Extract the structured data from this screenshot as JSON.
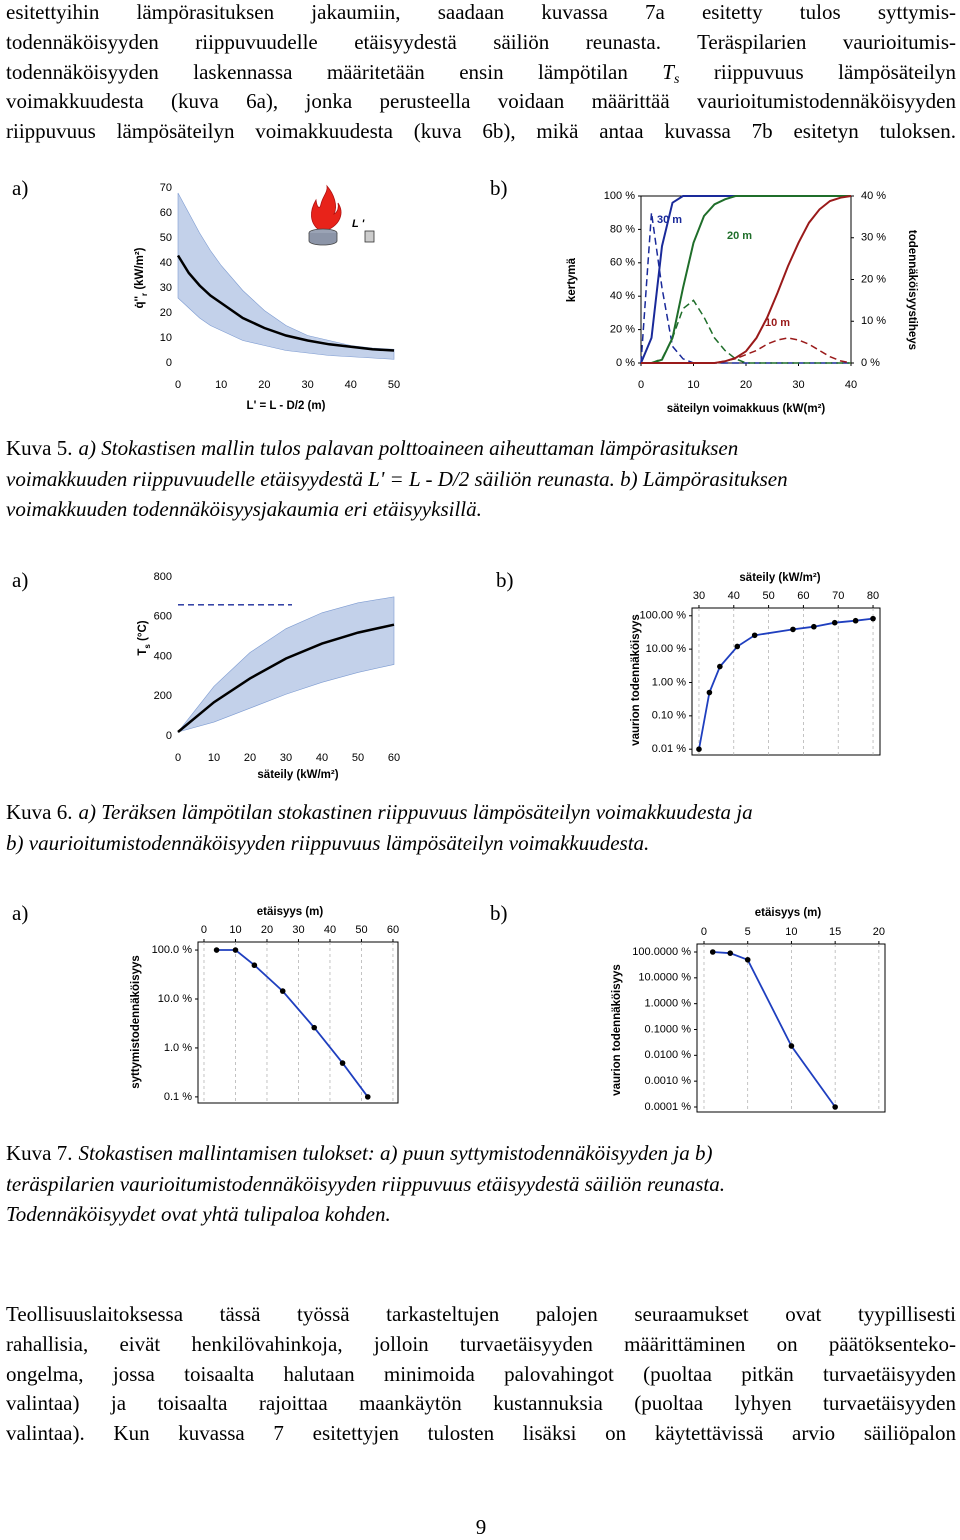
{
  "paragraph_top": {
    "lines": [
      "esitettyihin lämpörasituksen jakaumiin, saadaan kuvassa 7a esitetty tulos syttymis-",
      "todennäköisyyden riippuvuudelle etäisyydestä säiliön reunasta. Teräspilarien vaurioitumis-",
      [
        "todennäköisyyden laskennassa määritetään ensin lämpötilan ",
        "T",
        "s",
        " riippuvuus lämpösäteilyn"
      ],
      "voimakkuudesta (kuva 6a), jonka perusteella voidaan määrittää vaurioitumistodennäköisyyden",
      "riippuvuus lämpösäteilyn voimakkuudesta (kuva 6b), mikä antaa kuvassa 7b esitetyn tuloksen."
    ]
  },
  "figures": [
    {
      "panels": [
        {
          "letter": "a)",
          "chart": {
            "type": "line",
            "annotation": "L '",
            "x_label": "L' = L - D/2 (m)",
            "y_label": [
              "q̇''",
              "r",
              " (kW/m²)"
            ],
            "xlim": [
              0,
              50
            ],
            "xticks": [
              0,
              10,
              20,
              30,
              40,
              50
            ],
            "ylim": [
              0,
              70
            ],
            "yticks": [
              0,
              10,
              20,
              30,
              40,
              50,
              60,
              70
            ],
            "x": [
              0,
              2.5,
              5,
              7.5,
              10,
              15,
              20,
              25,
              30,
              35,
              40,
              45,
              50
            ],
            "band": {
              "color": "#b8c9e6",
              "upper": [
                68,
                60,
                52,
                45,
                39,
                29,
                21,
                15,
                11,
                9,
                7,
                6,
                5.5
              ],
              "lower": [
                26,
                22,
                18,
                15,
                13,
                9,
                7,
                5,
                4,
                3,
                2.5,
                2,
                1.5
              ]
            },
            "series": [
              {
                "color": "#000000",
                "width": 2.5,
                "values": [
                  43,
                  36,
                  31,
                  27,
                  24,
                  18,
                  14,
                  11,
                  9,
                  7.5,
                  6.5,
                  5.5,
                  5
                ]
              }
            ]
          }
        },
        {
          "letter": "b)",
          "chart": {
            "type": "line",
            "frame": true,
            "x_label": "säteilyn voimakkuus (kW(m²)",
            "y_label": "kertymä",
            "y2_label": "todennäköisyystiheys",
            "xlim": [
              0,
              40
            ],
            "xticks": [
              0,
              10,
              20,
              30,
              40
            ],
            "ylim": [
              0,
              100
            ],
            "yticks": [
              {
                "value": 0,
                "label": "0 %"
              },
              {
                "value": 20,
                "label": "20 %"
              },
              {
                "value": 40,
                "label": "40 %"
              },
              {
                "value": 60,
                "label": "60 %"
              },
              {
                "value": 80,
                "label": "80 %"
              },
              {
                "value": 100,
                "label": "100 %"
              }
            ],
            "y2lim": [
              0,
              40
            ],
            "y2ticks": [
              {
                "value": 0,
                "label": "0 %"
              },
              {
                "value": 10,
                "label": "10 %"
              },
              {
                "value": 20,
                "label": "20 %"
              },
              {
                "value": 30,
                "label": "30 %"
              },
              {
                "value": 40,
                "label": "40 %"
              }
            ],
            "x": [
              0,
              2,
              4,
              6,
              8,
              10,
              12,
              14,
              16,
              18,
              20,
              22,
              24,
              26,
              28,
              30,
              32,
              34,
              36,
              38,
              40
            ],
            "series": [
              {
                "name": "30 m",
                "color": "#1a2a9a",
                "width": 2,
                "values": [
                  0,
                  15,
                  70,
                  96,
                  100,
                  100,
                  100,
                  100,
                  100,
                  100,
                  100,
                  100,
                  100,
                  100,
                  100,
                  100,
                  100,
                  100,
                  100,
                  100,
                  100
                ]
              },
              {
                "color": "#1a2a9a",
                "dash": true,
                "axis": "y2",
                "values": [
                  0,
                  36,
                  18,
                  4,
                  1,
                  0,
                  0,
                  0,
                  0,
                  0,
                  0,
                  0,
                  0,
                  0,
                  0,
                  0,
                  0,
                  0,
                  0,
                  0,
                  0
                ]
              },
              {
                "name": "20 m",
                "color": "#1f6e2a",
                "width": 2,
                "values": [
                  0,
                  0,
                  2,
                  15,
                  45,
                  72,
                  88,
                  95,
                  98,
                  100,
                  100,
                  100,
                  100,
                  100,
                  100,
                  100,
                  100,
                  100,
                  100,
                  100,
                  100
                ]
              },
              {
                "color": "#1f6e2a",
                "dash": true,
                "axis": "y2",
                "values": [
                  0,
                  0,
                  1,
                  6,
                  13,
                  15,
                  11,
                  6,
                  3,
                  1,
                  0,
                  0,
                  0,
                  0,
                  0,
                  0,
                  0,
                  0,
                  0,
                  0,
                  0
                ]
              },
              {
                "name": "10 m",
                "color": "#9a1a1a",
                "width": 2,
                "values": [
                  0,
                  0,
                  0,
                  0,
                  0,
                  0,
                  0,
                  0,
                  1,
                  3,
                  7,
                  15,
                  27,
                  42,
                  58,
                  72,
                  84,
                  92,
                  97,
                  99,
                  100
                ]
              },
              {
                "color": "#9a1a1a",
                "dash": true,
                "axis": "y2",
                "values": [
                  0,
                  0,
                  0,
                  0,
                  0,
                  0,
                  0,
                  0,
                  0.5,
                  1,
                  2,
                  3,
                  4.5,
                  5.5,
                  6,
                  5.5,
                  4.5,
                  3,
                  1.5,
                  0.5,
                  0
                ]
              }
            ]
          }
        }
      ],
      "caption": {
        "label": "Kuva 5.",
        "lines": [
          "a) Stokastisen mallin tulos palavan polttoaineen aiheuttaman lämpörasituksen",
          "voimakkuuden riippuvuudelle etäisyydestä L' = L - D/2 säiliön reunasta. b) Lämpörasituksen",
          "voimakkuuden todennäköisyysjakaumia eri etäisyyksillä."
        ]
      }
    },
    {
      "panels": [
        {
          "letter": "a)",
          "chart": {
            "type": "line",
            "x_label": "säteily (kW/m²)",
            "y_label": [
              "T",
              "s",
              " (°C)"
            ],
            "xlim": [
              0,
              60
            ],
            "xticks": [
              0,
              10,
              20,
              30,
              40,
              50,
              60
            ],
            "ylim": [
              0,
              800
            ],
            "yticks": [
              0,
              200,
              400,
              600,
              800
            ],
            "x": [
              0,
              10,
              20,
              30,
              40,
              50,
              60
            ],
            "threshold": 660,
            "band": {
              "color": "#b8c9e6",
              "upper": [
                20,
                250,
                420,
                540,
                620,
                670,
                700
              ],
              "lower": [
                20,
                70,
                140,
                210,
                270,
                320,
                360
              ]
            },
            "series": [
              {
                "color": "#000000",
                "width": 2.5,
                "values": [
                  20,
                  170,
                  290,
                  390,
                  465,
                  520,
                  560
                ]
              }
            ]
          }
        },
        {
          "letter": "b)",
          "chart": {
            "type": "line",
            "frame": true,
            "grid": true,
            "x_axis": "top",
            "log_y": true,
            "x_label": "säteily (kW/m²)",
            "y_label": "vaurion todennäköisyys",
            "xlim": [
              28,
              82
            ],
            "xticks": [
              30,
              40,
              50,
              60,
              70,
              80
            ],
            "ylim": [
              0.0067,
              171
            ],
            "yticks": [
              {
                "value": 0.01,
                "label": "0.01 %"
              },
              {
                "value": 0.1,
                "label": "0.10 %"
              },
              {
                "value": 1,
                "label": "1.00 %"
              },
              {
                "value": 10,
                "label": "10.00 %"
              },
              {
                "value": 100,
                "label": "100.00 %"
              }
            ],
            "x": [
              30,
              33,
              36,
              41,
              46,
              57,
              63,
              69,
              75,
              80
            ],
            "series": [
              {
                "color": "#1f3fbf",
                "width": 1.8,
                "markers": true,
                "marker_color": "#000000",
                "values": [
                  0.01,
                  0.5,
                  3,
                  12,
                  26,
                  39,
                  47,
                  62,
                  71,
                  82
                ]
              }
            ]
          }
        }
      ],
      "caption": {
        "label": "Kuva 6.",
        "lines": [
          "a) Teräksen lämpötilan stokastinen riippuvuus lämpösäteilyn voimakkuudesta ja",
          "b) vaurioitumistodennäköisyyden riippuvuus lämpösäteilyn voimakkuudesta."
        ]
      }
    },
    {
      "panels": [
        {
          "letter": "a)",
          "chart": {
            "type": "line",
            "frame": true,
            "grid": true,
            "x_axis": "top",
            "log_y": true,
            "x_label": "etäisyys (m)",
            "y_label": "syttymistodennäköisyys",
            "xlim": [
              -1.9,
              61.6
            ],
            "xticks": [
              0,
              10,
              20,
              30,
              40,
              50,
              60
            ],
            "ylim": [
              0.075,
              146
            ],
            "yticks": [
              {
                "value": 0.1,
                "label": "0.1 %"
              },
              {
                "value": 1,
                "label": "1.0 %"
              },
              {
                "value": 10,
                "label": "10.0 %"
              },
              {
                "value": 100,
                "label": "100.0 %"
              }
            ],
            "x": [
              4,
              10,
              16,
              25,
              35,
              44,
              52
            ],
            "series": [
              {
                "color": "#1f3fbf",
                "width": 1.8,
                "markers": true,
                "marker_color": "#000000",
                "values": [
                  100,
                  100,
                  49,
                  14.5,
                  2.6,
                  0.49,
                  0.1
                ]
              }
            ]
          }
        },
        {
          "letter": "b)",
          "chart": {
            "type": "line",
            "frame": true,
            "grid": true,
            "x_axis": "top",
            "log_y": true,
            "x_label": "etäisyys (m)",
            "y_label": "vaurion todennäköisyys",
            "xlim": [
              -0.8,
              20.7
            ],
            "xticks": [
              0,
              5,
              10,
              15,
              20
            ],
            "ylim": [
              6.4e-05,
              204
            ],
            "yticks": [
              {
                "value": 0.0001,
                "label": "0.0001 %"
              },
              {
                "value": 0.001,
                "label": "0.0010 %"
              },
              {
                "value": 0.01,
                "label": "0.0100 %"
              },
              {
                "value": 0.1,
                "label": "0.1000 %"
              },
              {
                "value": 1,
                "label": "1.0000 %"
              },
              {
                "value": 10,
                "label": "10.0000 %"
              },
              {
                "value": 100,
                "label": "100.0000 %"
              }
            ],
            "x": [
              1,
              3,
              5,
              10,
              15
            ],
            "series": [
              {
                "color": "#1f3fbf",
                "width": 1.8,
                "markers": true,
                "marker_color": "#000000",
                "values": [
                  100,
                  90,
                  50,
                  0.023,
                  0.0001
                ]
              }
            ]
          }
        }
      ],
      "caption": {
        "label": "Kuva 7.",
        "lines": [
          "Stokastisen mallintamisen tulokset: a) puun syttymistodennäköisyyden ja b)",
          "teräspilarien vaurioitumistodennäköisyyden riippuvuus etäisyydestä säiliön reunasta.",
          "Todennäköisyydet ovat yhtä tulipaloa kohden."
        ]
      }
    }
  ],
  "paragraph_bottom": {
    "lines": [
      "Teollisuuslaitoksessa tässä työssä tarkasteltujen palojen seuraamukset ovat tyypillisesti",
      "rahallisia, eivät henkilövahinkoja, jolloin turvaetäisyyden määrittäminen on päätöksenteko-",
      "ongelma, jossa toisaalta halutaan minimoida palovahingot (puoltaa pitkän turvaetäisyyden",
      "valintaa) ja toisaalta rajoittaa maankäytön kustannuksia (puoltaa lyhyen turvaetäisyyden",
      "valintaa). Kun kuvassa 7 esitettyjen tulosten lisäksi on käytettävissä arvio säiliöpalon"
    ]
  },
  "page_number": "9"
}
